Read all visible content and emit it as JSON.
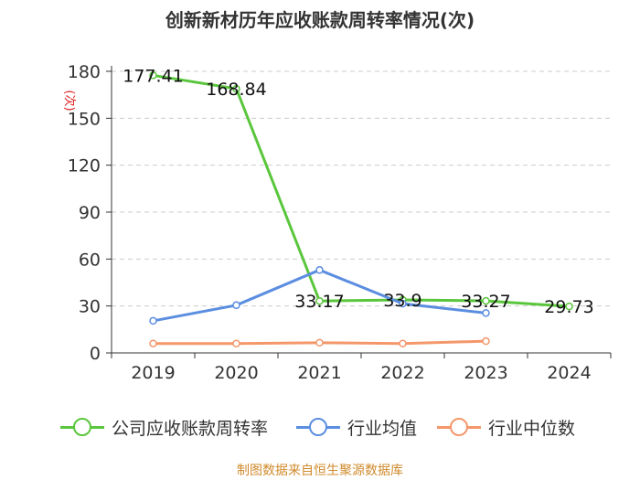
{
  "title": "创新新材历年应收账款周转率情况(次)",
  "source": "制图数据来自恒生聚源数据库",
  "chart_data": {
    "type": "line",
    "title": "创新新材历年应收账款周转率情况(次)",
    "ylabel": "(次)",
    "xlabel": "",
    "categories": [
      "2019",
      "2020",
      "2021",
      "2022",
      "2023",
      "2024"
    ],
    "ylim": [
      0,
      180
    ],
    "yticks": [
      0,
      30,
      60,
      90,
      120,
      150,
      180
    ],
    "grid": true,
    "legend_position": "bottom",
    "series": [
      {
        "name": "公司应收账款周转率",
        "color": "#5ac63c",
        "values": [
          177.41,
          168.84,
          33.17,
          33.9,
          33.27,
          29.73
        ],
        "labels": true
      },
      {
        "name": "行业均值",
        "color": "#5b8ee0",
        "values": [
          20.5,
          30.5,
          53.0,
          31.5,
          25.5,
          null
        ],
        "labels": false
      },
      {
        "name": "行业中位数",
        "color": "#f4976a",
        "values": [
          6.0,
          6.0,
          6.5,
          6.0,
          7.5,
          null
        ],
        "labels": false
      }
    ]
  }
}
